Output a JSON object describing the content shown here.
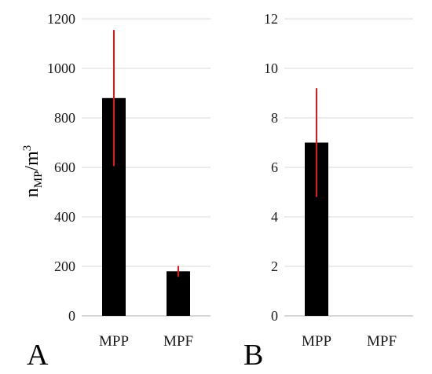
{
  "chart_data": [
    {
      "type": "bar",
      "panel_label": "A",
      "categories": [
        "MPP",
        "MPF"
      ],
      "values": [
        880,
        180
      ],
      "error_low": [
        605,
        158
      ],
      "error_high": [
        1155,
        202
      ],
      "ylabel_main": "n",
      "ylabel_sub": "MP",
      "ylabel_rest": "/m",
      "ylabel_sup": "3",
      "ylim": [
        0,
        1200
      ],
      "yticks": [
        "0",
        "200",
        "400",
        "600",
        "800",
        "1000",
        "1200"
      ],
      "grid": true,
      "bar_color": "#000000",
      "error_color": "#e8141c"
    },
    {
      "type": "bar",
      "panel_label": "B",
      "categories": [
        "MPP",
        "MPF"
      ],
      "values": [
        7,
        0
      ],
      "error_low": [
        4.8,
        null
      ],
      "error_high": [
        9.2,
        null
      ],
      "ylim": [
        0,
        12
      ],
      "yticks": [
        "0",
        "2",
        "4",
        "6",
        "8",
        "10",
        "12"
      ],
      "grid": true,
      "bar_color": "#000000",
      "error_color": "#e8141c"
    }
  ]
}
